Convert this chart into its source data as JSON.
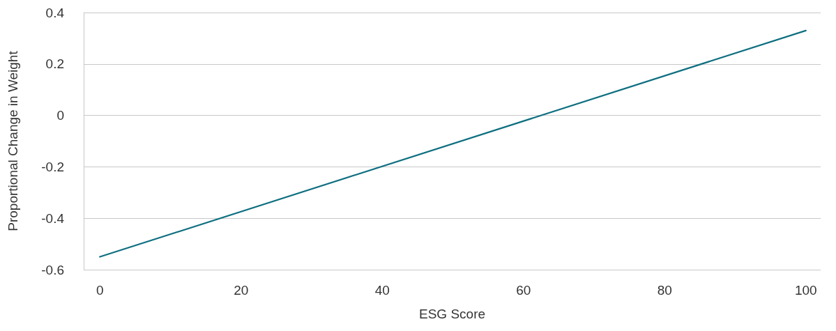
{
  "chart_data": {
    "type": "line",
    "xlabel": "ESG Score",
    "ylabel": "Proportional Change in Weight",
    "x": [
      0,
      100
    ],
    "series": [
      {
        "color": "#0e6f80",
        "values": [
          -0.55,
          0.33
        ]
      }
    ],
    "xlim": [
      -2.3,
      102.1
    ],
    "xticks": [
      0,
      20,
      40,
      60,
      80,
      100
    ],
    "ylim": [
      -0.6,
      0.4
    ],
    "yticks": [
      -0.6,
      -0.4,
      -0.2,
      0,
      0.2,
      0.4
    ],
    "grid": "y",
    "marker": "none",
    "line_style": "solid"
  }
}
